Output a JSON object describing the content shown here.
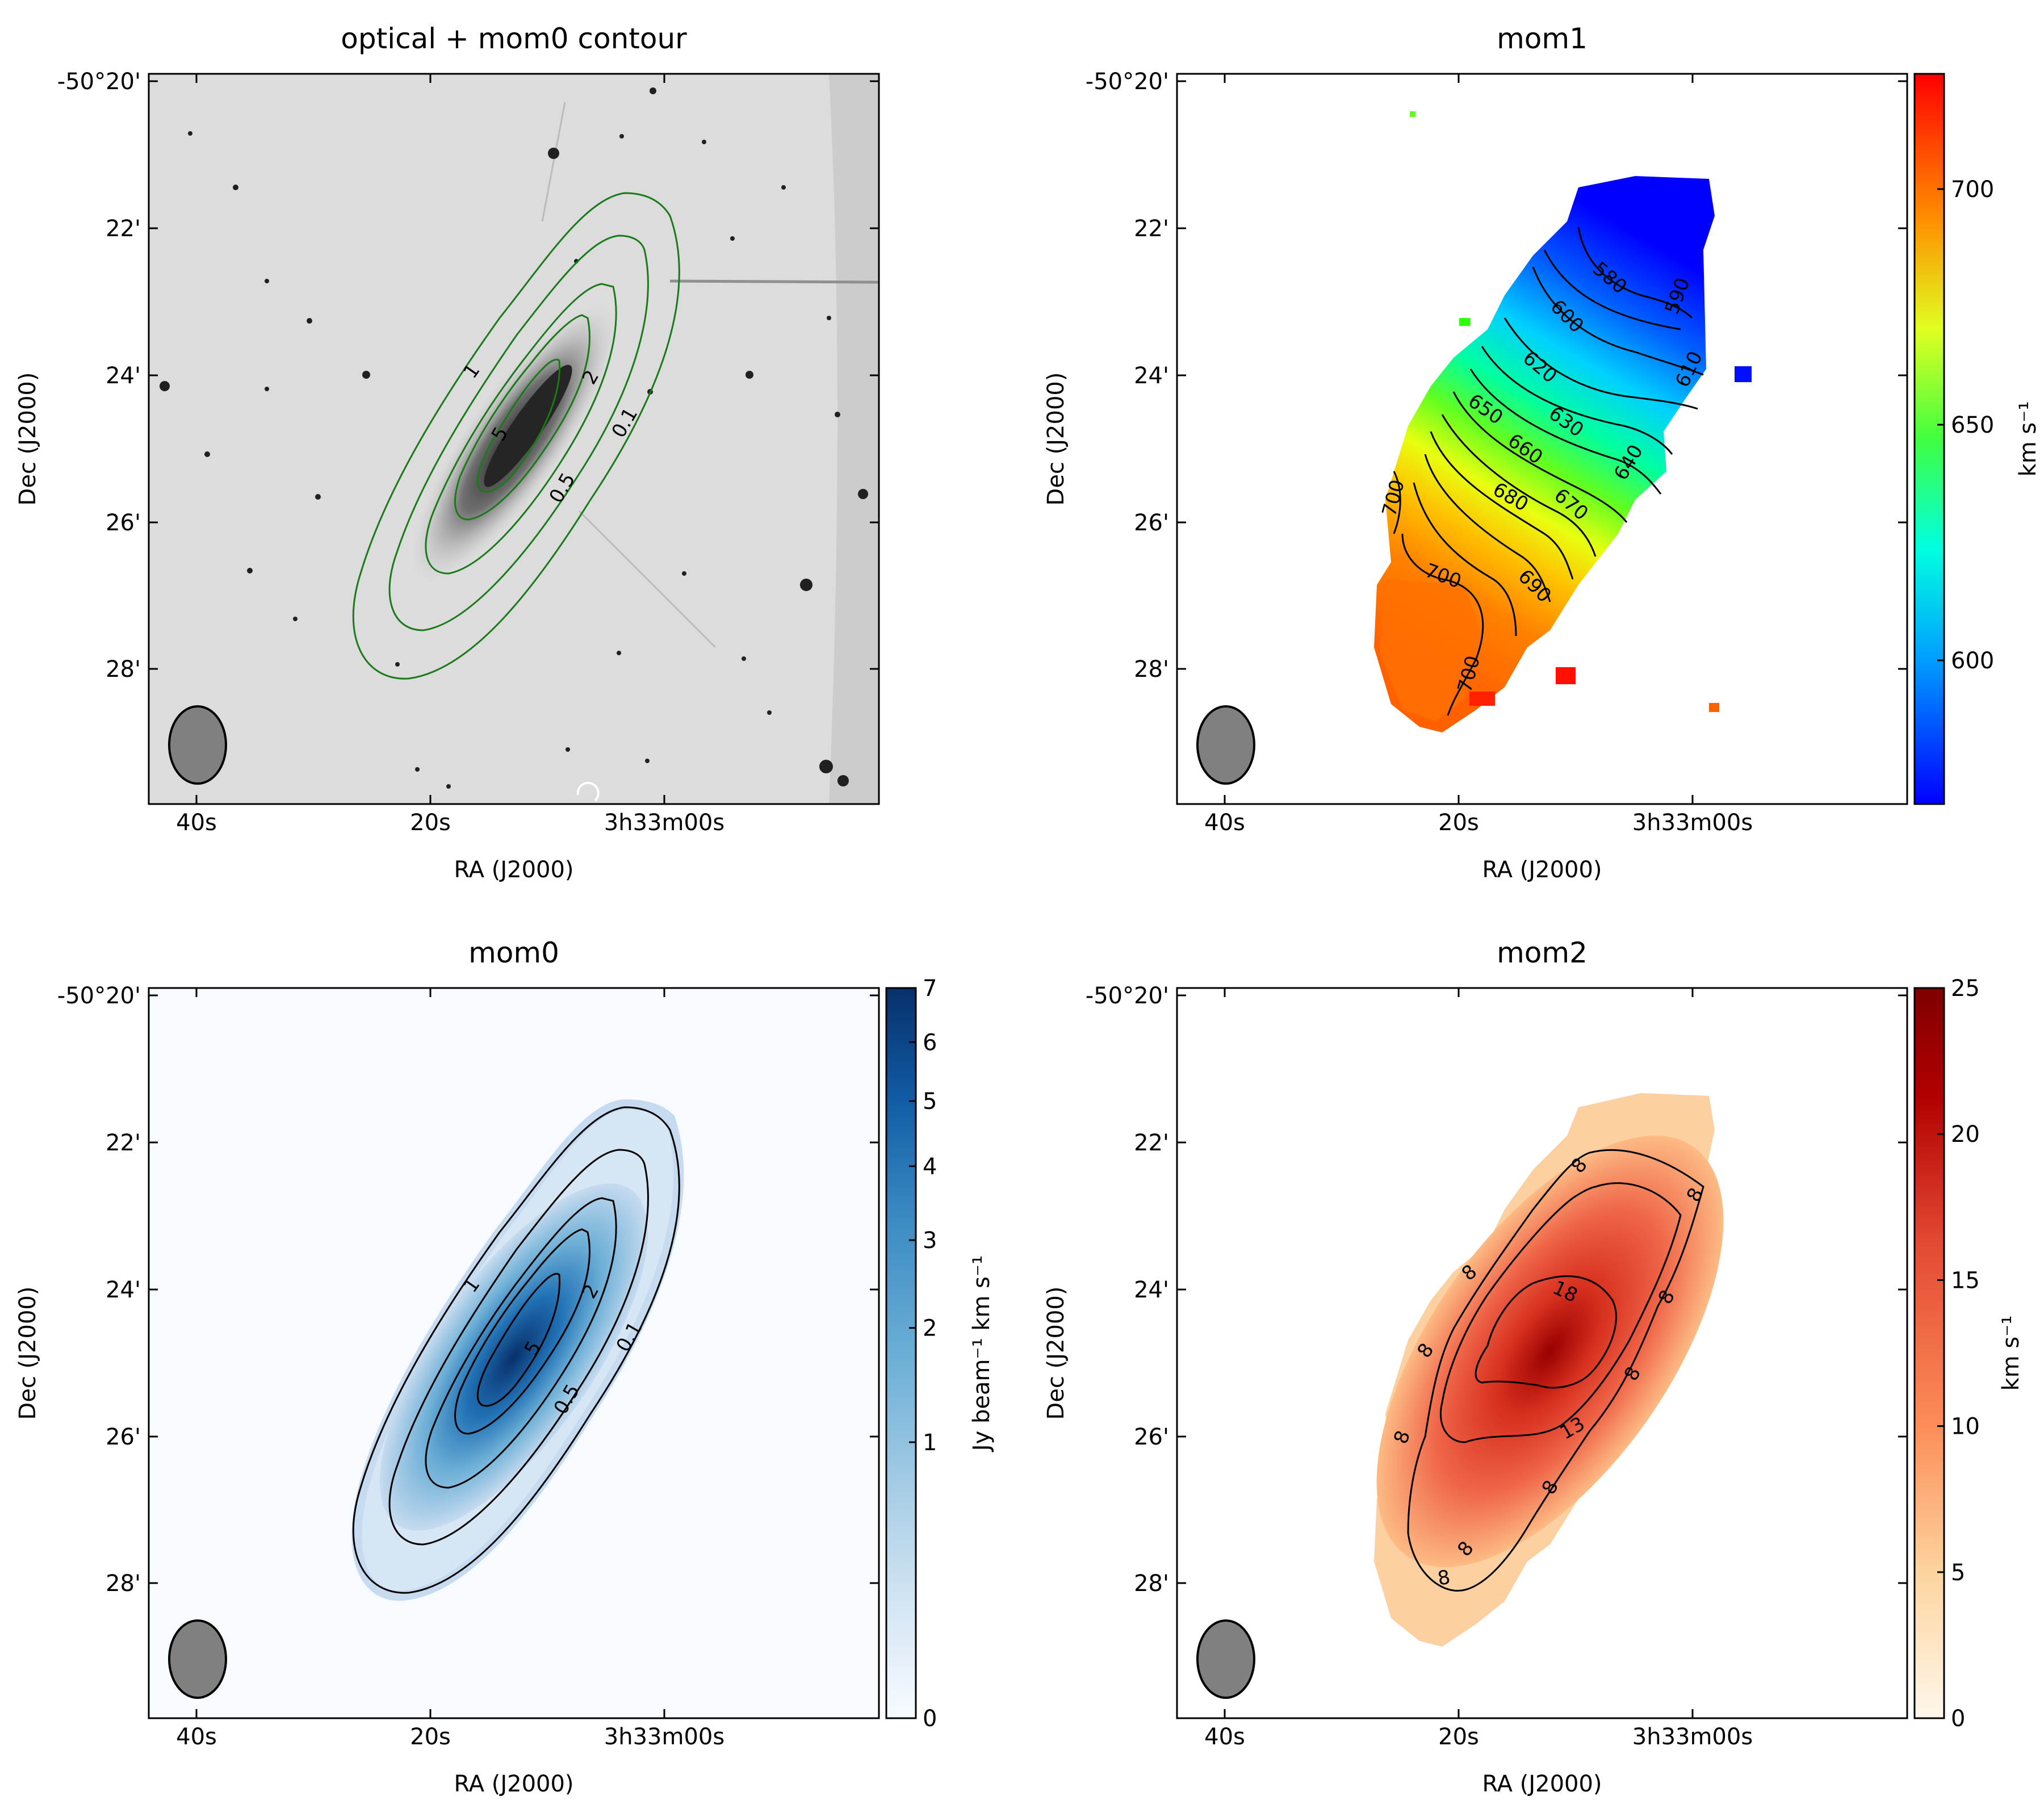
{
  "chart_data": [
    {
      "type": "heatmap",
      "title": "optical + mom0 contour",
      "colormap": "gray_r",
      "xlabel": "RA (J2000)",
      "ylabel": "Dec (J2000)",
      "xticks": [
        "40s",
        "20s",
        "3h33m00s"
      ],
      "yticks": [
        "-50°20'",
        "22'",
        "24'",
        "26'",
        "28'"
      ],
      "contour_color": "#1a7a1a",
      "contour_levels": [
        "0.1",
        "0.5",
        "1",
        "2",
        "5"
      ],
      "beam": "ellipse"
    },
    {
      "type": "heatmap",
      "title": "mom1",
      "colormap": "jet",
      "xlabel": "RA (J2000)",
      "ylabel": "Dec (J2000)",
      "xticks": [
        "40s",
        "20s",
        "3h33m00s"
      ],
      "yticks": [
        "-50°20'",
        "22'",
        "24'",
        "26'",
        "28'"
      ],
      "colorbar": {
        "label": "km s⁻¹",
        "range": [
          570,
          725
        ],
        "ticks": [
          "600",
          "650",
          "700"
        ],
        "tick_values": [
          600,
          650,
          700
        ]
      },
      "contour_levels": [
        "580",
        "590",
        "600",
        "610",
        "620",
        "630",
        "640",
        "650",
        "660",
        "670",
        "680",
        "690",
        "700"
      ],
      "beam": "ellipse"
    },
    {
      "type": "heatmap",
      "title": "mom0",
      "colormap": "Blues",
      "xlabel": "RA (J2000)",
      "ylabel": "Dec (J2000)",
      "xticks": [
        "40s",
        "20s",
        "3h33m00s"
      ],
      "yticks": [
        "-50°20'",
        "22'",
        "24'",
        "26'",
        "28'"
      ],
      "colorbar": {
        "label": "Jy beam⁻¹ km s⁻¹",
        "range": [
          0,
          7
        ],
        "ticks": [
          "0",
          "1",
          "2",
          "3",
          "4",
          "5",
          "6",
          "7"
        ],
        "tick_values": [
          0,
          1,
          2,
          3,
          4,
          5,
          6,
          7
        ],
        "scale": "sqrt"
      },
      "contour_levels": [
        "0.1",
        "0.5",
        "1",
        "2",
        "5"
      ],
      "beam": "ellipse"
    },
    {
      "type": "heatmap",
      "title": "mom2",
      "colormap": "OrRd",
      "xlabel": "RA (J2000)",
      "ylabel": "Dec (J2000)",
      "xticks": [
        "40s",
        "20s",
        "3h33m00s"
      ],
      "yticks": [
        "-50°20'",
        "22'",
        "24'",
        "26'",
        "28'"
      ],
      "colorbar": {
        "label": "km s⁻¹",
        "range": [
          0,
          25
        ],
        "ticks": [
          "0",
          "5",
          "10",
          "15",
          "20",
          "25"
        ],
        "tick_values": [
          0,
          5,
          10,
          15,
          20,
          25
        ]
      },
      "contour_levels": [
        "8",
        "13",
        "18"
      ],
      "beam": "ellipse"
    }
  ]
}
